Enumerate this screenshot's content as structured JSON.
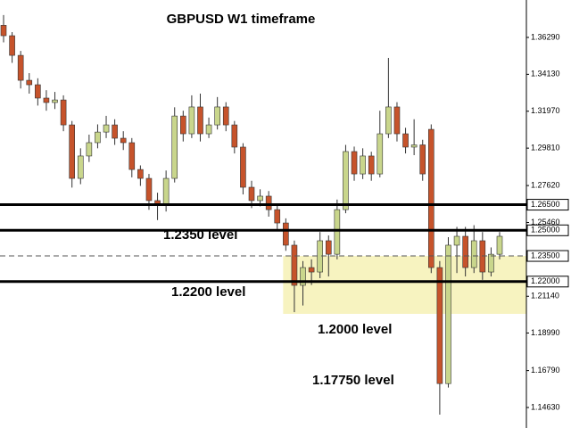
{
  "chart_data": {
    "type": "candlestick",
    "title": "GBPUSD W1 timeframe",
    "annotations": [
      "1.2350 level",
      "1.2200 level",
      "1.2000 level",
      "1.17750 level"
    ],
    "up_color": "#c9d68c",
    "down_color": "#c6532b",
    "zone_color": "#f7f3c0",
    "ylim": [
      1.1343,
      1.3848
    ],
    "yticks": [
      {
        "value": 1.3629,
        "label": "1.36290"
      },
      {
        "value": 1.3413,
        "label": "1.34130"
      },
      {
        "value": 1.3197,
        "label": "1.31970"
      },
      {
        "value": 1.2981,
        "label": "1.29810"
      },
      {
        "value": 1.2762,
        "label": "1.27620"
      },
      {
        "value": 1.2546,
        "label": "1.25460"
      },
      {
        "value": 1.2114,
        "label": "1.21140"
      },
      {
        "value": 1.1899,
        "label": "1.18990"
      },
      {
        "value": 1.1679,
        "label": "1.16790"
      },
      {
        "value": 1.1463,
        "label": "1.14630"
      }
    ],
    "levels": [
      {
        "value": 1.265,
        "label": "1.26500",
        "style": "solid"
      },
      {
        "value": 1.25,
        "label": "1.25000",
        "style": "solid"
      },
      {
        "value": 1.235,
        "label": "1.23500",
        "style": "dashed"
      },
      {
        "value": 1.22,
        "label": "1.22000",
        "style": "solid"
      }
    ],
    "zone": {
      "start": 33,
      "range": [
        1.2011,
        1.235
      ]
    },
    "open": [
      1.37,
      1.3639,
      1.3524,
      1.3378,
      1.3352,
      1.3274,
      1.3248,
      1.3263,
      1.3117,
      1.2804,
      1.2935,
      1.3013,
      1.3075,
      1.3117,
      1.3039,
      1.3013,
      1.2856,
      1.2804,
      1.2674,
      1.2648,
      1.2804,
      1.3169,
      1.3065,
      1.3222,
      1.3065,
      1.3117,
      1.3222,
      1.3117,
      1.2987,
      1.2752,
      1.2674,
      1.27,
      1.2621,
      1.2543,
      1.2413,
      1.2178,
      1.2282,
      1.2256,
      1.2439,
      1.236,
      1.2621,
      1.2961,
      1.283,
      1.2935,
      1.283,
      1.3065,
      1.3222,
      1.3065,
      1.2987,
      1.3,
      1.3091,
      1.2282,
      1.1603,
      1.2413,
      1.2465,
      1.2282,
      1.2439,
      1.2256,
      1.236
    ],
    "high": [
      1.376,
      1.366,
      1.355,
      1.342,
      1.339,
      1.332,
      1.331,
      1.329,
      1.314,
      1.298,
      1.306,
      1.312,
      1.317,
      1.315,
      1.308,
      1.304,
      1.288,
      1.283,
      1.272,
      1.285,
      1.322,
      1.32,
      1.329,
      1.33,
      1.316,
      1.328,
      1.325,
      1.314,
      1.301,
      1.279,
      1.274,
      1.273,
      1.265,
      1.257,
      1.244,
      1.232,
      1.233,
      1.249,
      1.247,
      1.268,
      1.3,
      1.299,
      1.298,
      1.296,
      1.32,
      1.3509,
      1.325,
      1.31,
      1.315,
      1.303,
      1.312,
      1.232,
      1.246,
      1.252,
      1.252,
      1.253,
      1.249,
      1.24,
      1.249
    ],
    "low": [
      1.36,
      1.348,
      1.333,
      1.33,
      1.323,
      1.32,
      1.321,
      1.308,
      1.275,
      1.277,
      1.29,
      1.298,
      1.304,
      1.3,
      1.297,
      1.281,
      1.276,
      1.262,
      1.256,
      1.261,
      1.278,
      1.302,
      1.304,
      1.302,
      1.304,
      1.309,
      1.308,
      1.295,
      1.271,
      1.263,
      1.264,
      1.258,
      1.25,
      1.238,
      1.2021,
      1.206,
      1.218,
      1.222,
      1.223,
      1.233,
      1.26,
      1.279,
      1.28,
      1.279,
      1.281,
      1.304,
      1.302,
      1.295,
      1.294,
      1.279,
      1.225,
      1.1421,
      1.158,
      1.225,
      1.223,
      1.225,
      1.221,
      1.223,
      1.233
    ],
    "close": [
      1.3639,
      1.3524,
      1.3378,
      1.3352,
      1.3274,
      1.3248,
      1.3263,
      1.3117,
      1.2804,
      1.2935,
      1.3013,
      1.3075,
      1.3117,
      1.3039,
      1.3013,
      1.2856,
      1.2804,
      1.2674,
      1.2648,
      1.2804,
      1.3169,
      1.3065,
      1.3222,
      1.3065,
      1.3117,
      1.3222,
      1.3117,
      1.2987,
      1.2752,
      1.2674,
      1.27,
      1.2621,
      1.2543,
      1.2413,
      1.2178,
      1.2282,
      1.2256,
      1.2439,
      1.236,
      1.2621,
      1.2961,
      1.283,
      1.2935,
      1.283,
      1.3065,
      1.3222,
      1.3065,
      1.2987,
      1.3,
      1.283,
      1.2282,
      1.1603,
      1.2413,
      1.2465,
      1.2282,
      1.2439,
      1.2256,
      1.236,
      1.2465
    ]
  }
}
